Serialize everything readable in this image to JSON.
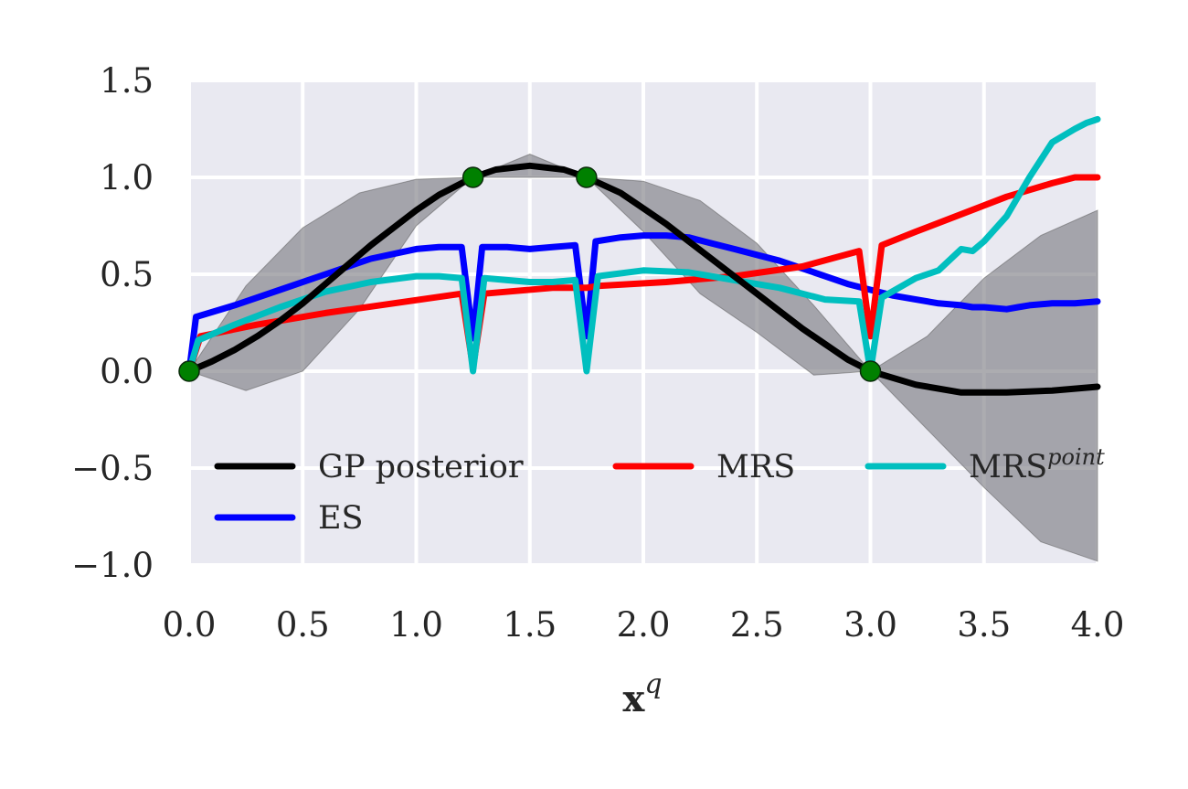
{
  "chart_data": {
    "type": "line",
    "title": "",
    "xlabel": "x",
    "xlabel_superscript": "q",
    "ylabel": "",
    "xlim": [
      0.0,
      4.0
    ],
    "ylim": [
      -1.0,
      1.5
    ],
    "grid": true,
    "background": "#e9e9f1",
    "x_ticks": [
      0.0,
      0.5,
      1.0,
      1.5,
      2.0,
      2.5,
      3.0,
      3.5,
      4.0
    ],
    "x_tick_labels": [
      "0.0",
      "0.5",
      "1.0",
      "1.5",
      "2.0",
      "2.5",
      "3.0",
      "3.5",
      "4.0"
    ],
    "y_ticks": [
      1.5,
      1.0,
      0.5,
      0.0,
      -0.5,
      -1.0
    ],
    "y_tick_labels": [
      "1.5",
      "1.0",
      "0.5",
      "0.0",
      "−0.5",
      "−1.0"
    ],
    "legend_placement": "lower-center",
    "legend": [
      {
        "label": "GP posterior",
        "color": "#000000"
      },
      {
        "label": "MRS",
        "color": "#ff0000"
      },
      {
        "label": "MRS",
        "superscript": "point",
        "color": "#00bfbf"
      },
      {
        "label": "ES",
        "color": "#0000ff"
      }
    ],
    "band": {
      "color": "#7f7f86",
      "x": [
        0.0,
        0.25,
        0.5,
        0.75,
        1.0,
        1.25,
        1.5,
        1.75,
        2.0,
        2.25,
        2.5,
        2.75,
        3.0,
        3.25,
        3.5,
        3.75,
        4.0
      ],
      "upper": [
        0.0,
        0.44,
        0.74,
        0.92,
        0.99,
        1.0,
        1.12,
        1.0,
        0.98,
        0.88,
        0.66,
        0.34,
        0.0,
        0.18,
        0.48,
        0.7,
        0.83
      ],
      "lower": [
        0.0,
        -0.1,
        0.0,
        0.32,
        0.75,
        1.0,
        1.0,
        1.0,
        0.72,
        0.4,
        0.2,
        -0.02,
        0.0,
        -0.3,
        -0.6,
        -0.88,
        -0.98
      ]
    },
    "series": [
      {
        "name": "GP posterior",
        "color": "#000000",
        "x": [
          0.0,
          0.1,
          0.2,
          0.3,
          0.4,
          0.5,
          0.6,
          0.7,
          0.8,
          0.9,
          1.0,
          1.1,
          1.25,
          1.35,
          1.5,
          1.65,
          1.75,
          1.9,
          2.0,
          2.1,
          2.2,
          2.3,
          2.4,
          2.5,
          2.6,
          2.7,
          2.8,
          2.9,
          3.0,
          3.2,
          3.4,
          3.6,
          3.8,
          4.0
        ],
        "y": [
          0.0,
          0.05,
          0.11,
          0.18,
          0.26,
          0.35,
          0.45,
          0.55,
          0.65,
          0.74,
          0.83,
          0.91,
          1.0,
          1.04,
          1.06,
          1.04,
          1.0,
          0.92,
          0.84,
          0.76,
          0.67,
          0.58,
          0.49,
          0.4,
          0.31,
          0.22,
          0.14,
          0.06,
          0.0,
          -0.07,
          -0.11,
          -0.11,
          -0.1,
          -0.08
        ]
      },
      {
        "name": "ES",
        "color": "#0000ff",
        "x": [
          0.0,
          0.03,
          0.2,
          0.4,
          0.6,
          0.8,
          1.0,
          1.1,
          1.2,
          1.25,
          1.29,
          1.4,
          1.5,
          1.6,
          1.7,
          1.75,
          1.79,
          1.9,
          2.0,
          2.1,
          2.2,
          2.3,
          2.4,
          2.5,
          2.6,
          2.7,
          2.8,
          2.9,
          3.0,
          3.1,
          3.2,
          3.3,
          3.4,
          3.45,
          3.5,
          3.6,
          3.65,
          3.7,
          3.8,
          3.9,
          4.0
        ],
        "y": [
          0.0,
          0.28,
          0.34,
          0.42,
          0.5,
          0.58,
          0.63,
          0.64,
          0.64,
          0.17,
          0.64,
          0.64,
          0.63,
          0.64,
          0.65,
          0.18,
          0.67,
          0.69,
          0.7,
          0.7,
          0.69,
          0.66,
          0.63,
          0.6,
          0.57,
          0.53,
          0.49,
          0.45,
          0.42,
          0.39,
          0.37,
          0.35,
          0.34,
          0.33,
          0.33,
          0.32,
          0.33,
          0.34,
          0.35,
          0.35,
          0.36
        ]
      },
      {
        "name": "MRS",
        "color": "#ff0000",
        "x": [
          0.0,
          0.05,
          0.3,
          0.6,
          0.9,
          1.2,
          1.25,
          1.3,
          1.6,
          1.75,
          1.8,
          2.1,
          2.4,
          2.7,
          2.95,
          3.0,
          3.05,
          3.2,
          3.4,
          3.6,
          3.8,
          3.9,
          4.0
        ],
        "y": [
          0.0,
          0.18,
          0.24,
          0.3,
          0.35,
          0.4,
          0.02,
          0.4,
          0.43,
          0.43,
          0.44,
          0.46,
          0.49,
          0.54,
          0.62,
          0.18,
          0.65,
          0.72,
          0.81,
          0.9,
          0.97,
          1.0,
          1.0
        ]
      },
      {
        "name": "MRS",
        "name_superscript": "point",
        "color": "#00bfbf",
        "x": [
          0.0,
          0.04,
          0.2,
          0.4,
          0.6,
          0.8,
          1.0,
          1.1,
          1.2,
          1.25,
          1.3,
          1.4,
          1.5,
          1.6,
          1.7,
          1.75,
          1.8,
          2.0,
          2.2,
          2.4,
          2.6,
          2.8,
          2.95,
          3.0,
          3.05,
          3.2,
          3.3,
          3.4,
          3.45,
          3.5,
          3.6,
          3.7,
          3.8,
          3.9,
          3.95,
          4.0
        ],
        "y": [
          0.0,
          0.16,
          0.24,
          0.33,
          0.41,
          0.46,
          0.49,
          0.49,
          0.48,
          0.0,
          0.48,
          0.47,
          0.46,
          0.46,
          0.47,
          0.0,
          0.49,
          0.52,
          0.51,
          0.47,
          0.43,
          0.37,
          0.36,
          0.0,
          0.38,
          0.48,
          0.52,
          0.63,
          0.62,
          0.67,
          0.8,
          1.0,
          1.18,
          1.25,
          1.28,
          1.3
        ]
      }
    ],
    "markers": {
      "color": "#008000",
      "points": [
        {
          "x": 0.0,
          "y": 0.0
        },
        {
          "x": 1.25,
          "y": 1.0
        },
        {
          "x": 1.75,
          "y": 1.0
        },
        {
          "x": 3.0,
          "y": 0.0
        }
      ]
    }
  }
}
